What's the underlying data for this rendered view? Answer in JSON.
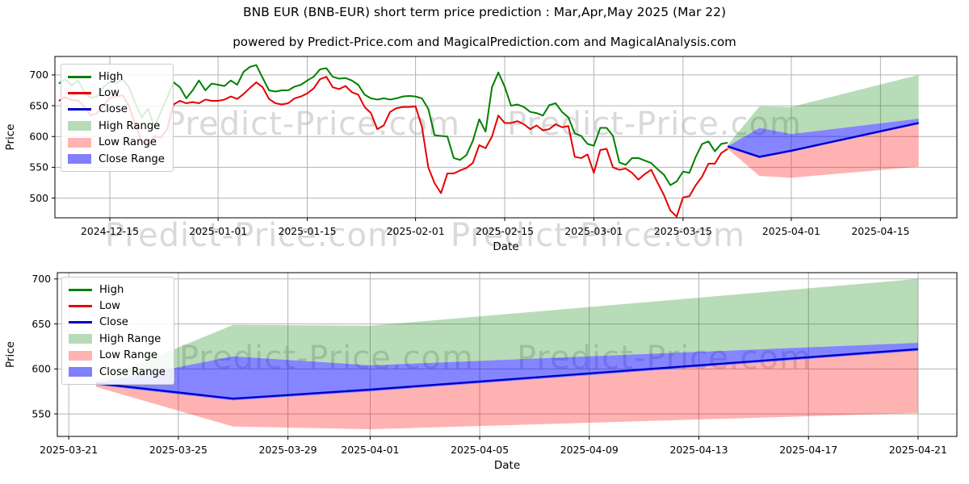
{
  "figure": {
    "title": "BNB EUR (BNB-EUR) short term price prediction : Mar,Apr,May 2025 (Mar 22)",
    "subtitle": "powered by Predict-Price.com and MagicalPrediction.com and MagicalAnalysis.com",
    "watermark_text": "Predict-Price.com"
  },
  "colors": {
    "high_line": "#008000",
    "low_line": "#e60000",
    "close_line": "#0000cc",
    "high_range_fill": "rgba(0,128,0,0.28)",
    "low_range_fill": "rgba(255,0,0,0.30)",
    "close_range_fill": "rgba(0,0,255,0.48)",
    "grid": "#b3b3b3",
    "high_range_swatch": "#b7dbb7",
    "low_range_swatch": "#ffb3b3",
    "close_range_swatch": "#8080fa"
  },
  "legend": {
    "items": [
      {
        "label": "High",
        "swatch": "line",
        "color": "#008000"
      },
      {
        "label": "Low",
        "swatch": "line",
        "color": "#e60000"
      },
      {
        "label": "Close",
        "swatch": "line",
        "color": "#0000cc"
      },
      {
        "label": "High Range",
        "swatch": "patch",
        "color": "#b7dbb7"
      },
      {
        "label": "Low Range",
        "swatch": "patch",
        "color": "#ffb3b3"
      },
      {
        "label": "Close Range",
        "swatch": "patch",
        "color": "#8080fa"
      }
    ]
  },
  "chart_data": [
    {
      "type": "line",
      "name": "price-history-and-forecast",
      "xlabel": "Date",
      "ylabel": "Price",
      "x_ticks": [
        "2024-12-15",
        "2025-01-01",
        "2025-01-15",
        "2025-02-01",
        "2025-02-15",
        "2025-03-01",
        "2025-03-15",
        "2025-04-01",
        "2025-04-15"
      ],
      "y_ticks": [
        500,
        550,
        600,
        650,
        700
      ],
      "ylim": [
        468,
        730
      ],
      "grid": true,
      "legend_position": "upper left",
      "history": {
        "start_date": "2024-12-07",
        "high": [
          686,
          693,
          683,
          691,
          673,
          663,
          665,
          680,
          689,
          687,
          693,
          680,
          654,
          631,
          645,
          615,
          640,
          663,
          688,
          680,
          662,
          675,
          691,
          675,
          686,
          684,
          682,
          691,
          684,
          705,
          713,
          716,
          695,
          675,
          673,
          675,
          675,
          681,
          684,
          691,
          697,
          709,
          711,
          697,
          694,
          695,
          691,
          684,
          668,
          662,
          660,
          662,
          660,
          662,
          665,
          666,
          665,
          662,
          645,
          602,
          601,
          600,
          565,
          562,
          570,
          593,
          628,
          608,
          680,
          704,
          681,
          650,
          652,
          648,
          640,
          638,
          634,
          651,
          654,
          640,
          631,
          605,
          601,
          588,
          585,
          614,
          614,
          601,
          558,
          554,
          565,
          565,
          561,
          557,
          547,
          538,
          521,
          527,
          543,
          541,
          567,
          588,
          592,
          576,
          588,
          590
        ],
        "low": [
          658,
          664,
          659,
          659,
          648,
          634,
          638,
          650,
          663,
          665,
          667,
          650,
          619,
          592,
          585,
          601,
          598,
          612,
          652,
          658,
          654,
          656,
          654,
          660,
          658,
          658,
          660,
          665,
          661,
          669,
          679,
          688,
          680,
          661,
          654,
          652,
          654,
          662,
          665,
          670,
          678,
          693,
          697,
          680,
          677,
          682,
          672,
          668,
          648,
          638,
          612,
          618,
          640,
          646,
          648,
          648,
          649,
          616,
          550,
          524,
          508,
          540,
          540,
          545,
          549,
          557,
          586,
          581,
          600,
          634,
          622,
          622,
          625,
          620,
          612,
          618,
          610,
          612,
          620,
          615,
          617,
          567,
          565,
          571,
          541,
          578,
          580,
          550,
          546,
          548,
          541,
          530,
          539,
          546,
          525,
          505,
          480,
          470,
          501,
          503,
          521,
          535,
          556,
          556,
          573,
          580
        ]
      },
      "prediction": {
        "dates": [
          "2025-03-22",
          "2025-03-27",
          "2025-04-01",
          "2025-04-21"
        ],
        "close": [
          584,
          567,
          577,
          622
        ],
        "close_upper": [
          584,
          614,
          604,
          629
        ],
        "close_lower": [
          582,
          565,
          575,
          620
        ],
        "high_upper": [
          586,
          649,
          648,
          700
        ],
        "low_lower": [
          580,
          536,
          533,
          551
        ]
      }
    },
    {
      "type": "line",
      "name": "forecast-detail",
      "xlabel": "Date",
      "ylabel": "Price",
      "x_ticks": [
        "2025-03-21",
        "2025-03-25",
        "2025-03-29",
        "2025-04-01",
        "2025-04-05",
        "2025-04-09",
        "2025-04-13",
        "2025-04-17",
        "2025-04-21"
      ],
      "y_ticks": [
        550,
        600,
        650,
        700
      ],
      "ylim": [
        525,
        707
      ],
      "grid": true,
      "legend_position": "upper left",
      "prediction": {
        "dates": [
          "2025-03-22",
          "2025-03-27",
          "2025-04-01",
          "2025-04-21"
        ],
        "close": [
          584,
          567,
          577,
          622
        ],
        "close_upper": [
          584,
          614,
          604,
          629
        ],
        "close_lower": [
          582,
          565,
          575,
          620
        ],
        "high_upper": [
          586,
          649,
          648,
          700
        ],
        "low_lower": [
          580,
          536,
          533,
          551
        ]
      }
    }
  ]
}
